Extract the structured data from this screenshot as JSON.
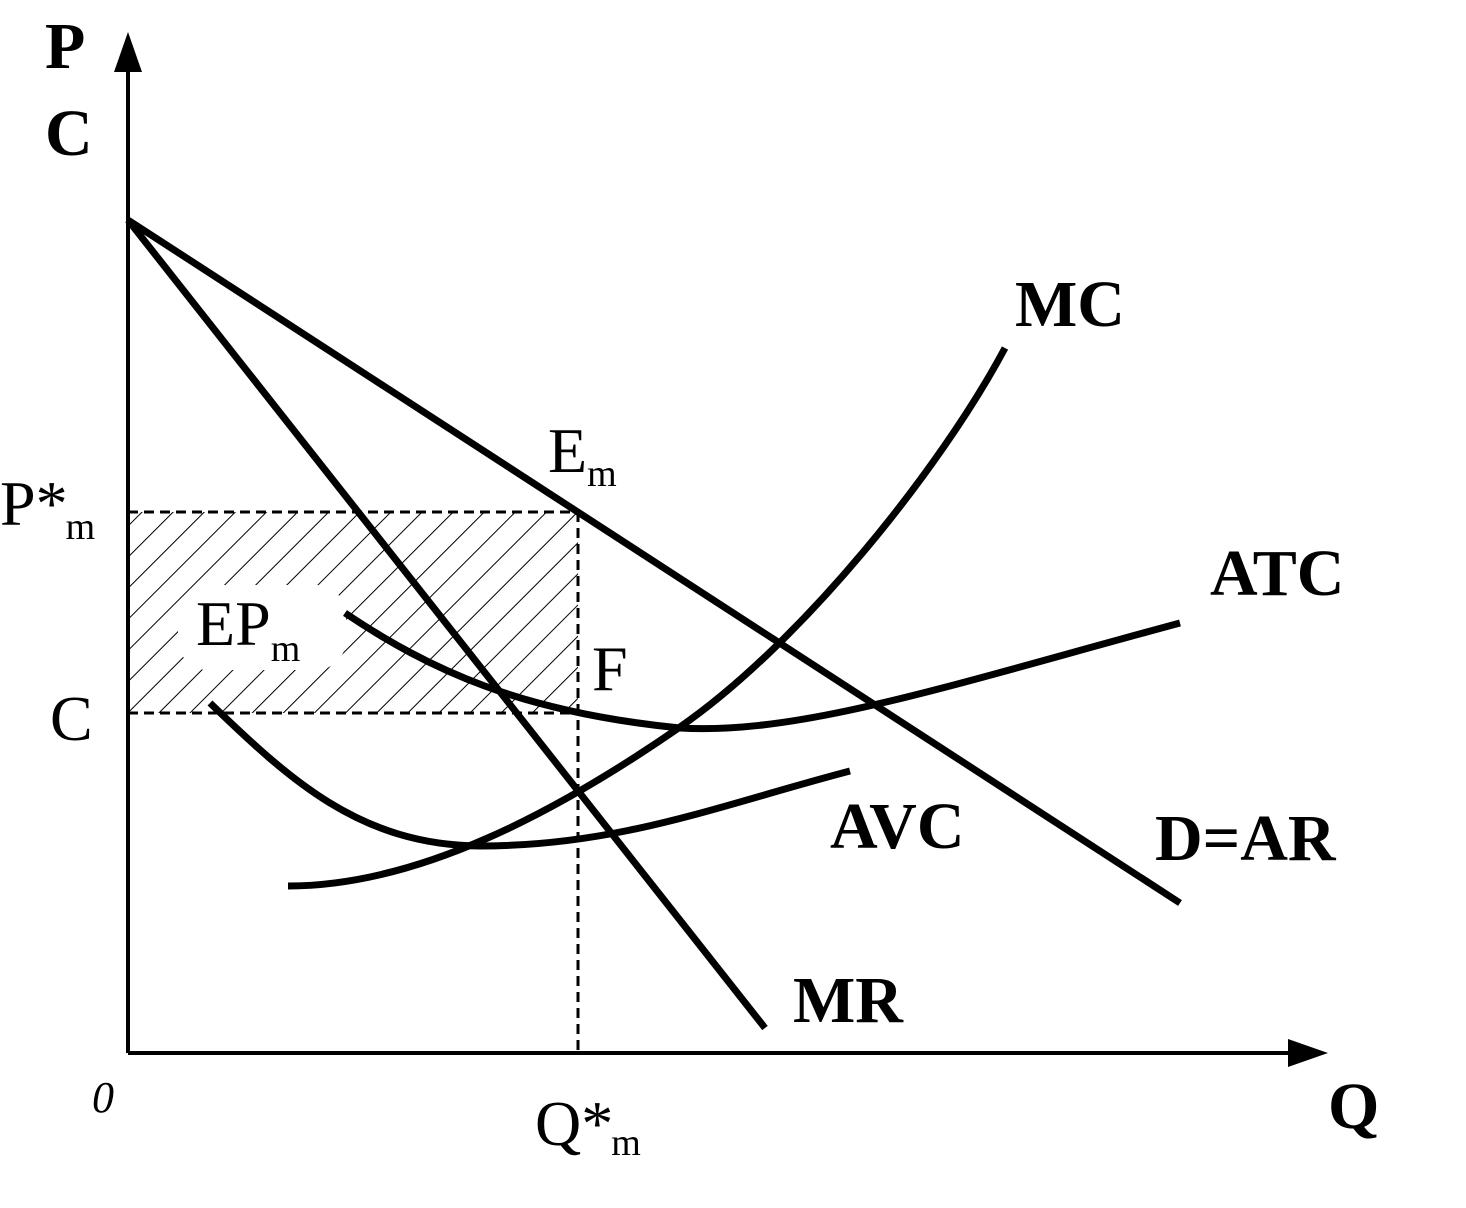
{
  "axes": {
    "y_label_top": "P",
    "y_label_bottom": "C",
    "x_label": "Q",
    "origin": "0"
  },
  "levels": {
    "price": {
      "text": "P*",
      "sub": "m"
    },
    "cost": {
      "text": "C"
    },
    "quantity": {
      "text": "Q*",
      "sub": "m"
    }
  },
  "points": {
    "equilibrium": {
      "text": "E",
      "sub": "m"
    },
    "f": {
      "text": "F"
    }
  },
  "profit_area": {
    "text": "EP",
    "sub": "m"
  },
  "curves": {
    "mc": "MC",
    "atc": "ATC",
    "avc": "AVC",
    "demand": "D=AR",
    "mr": "MR"
  }
}
